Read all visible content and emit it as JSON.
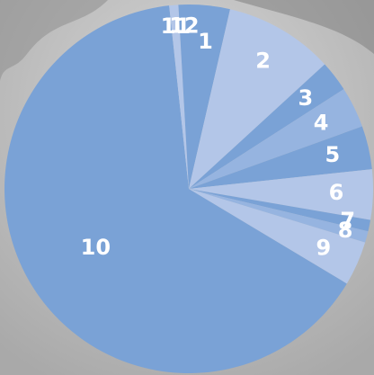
{
  "chart_data": {
    "type": "pie",
    "categories": [
      "1",
      "2",
      "3",
      "4",
      "5",
      "6",
      "7",
      "8",
      "9",
      "10",
      "11",
      "12"
    ],
    "values": [
      3.6,
      9.6,
      2.7,
      3.6,
      3.8,
      4.4,
      1,
      1,
      3.9,
      64.7,
      0.8,
      0.9
    ],
    "colors": [
      "#7aa2d6",
      "#b3c6e8",
      "#7aa2d6",
      "#96b4e0",
      "#7aa2d6",
      "#b3c6e8",
      "#7aa2d6",
      "#96b4e0",
      "#b3c6e8",
      "#7aa2d6",
      "#b3c6e8",
      "#7aa2d6"
    ]
  }
}
